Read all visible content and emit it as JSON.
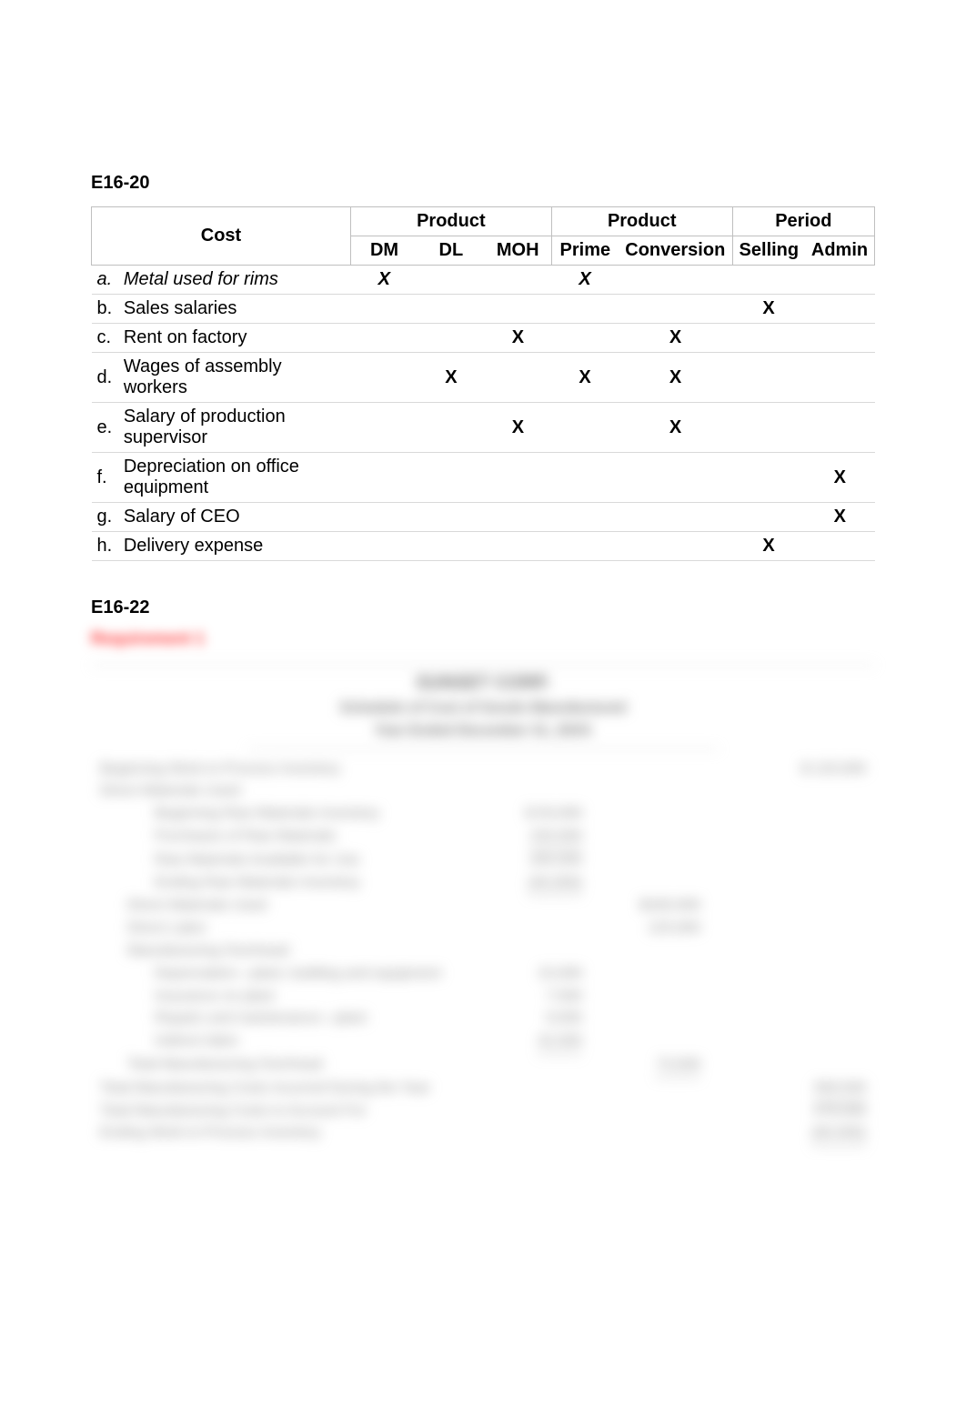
{
  "section1": {
    "title": "E16-20",
    "headers": {
      "cost": "Cost",
      "product1": "Product",
      "product2": "Product",
      "period": "Period",
      "dm": "DM",
      "dl": "DL",
      "moh": "MOH",
      "prime": "Prime",
      "conversion": "Conversion",
      "selling": "Selling",
      "admin": "Admin"
    },
    "rows": [
      {
        "letter": "a.",
        "label": "Metal used for rims",
        "italic": true,
        "dm": "X",
        "dl": "",
        "moh": "",
        "prime": "X",
        "conv": "",
        "selling": "",
        "admin": ""
      },
      {
        "letter": "b.",
        "label": "Sales salaries",
        "italic": false,
        "dm": "",
        "dl": "",
        "moh": "",
        "prime": "",
        "conv": "",
        "selling": "X",
        "admin": ""
      },
      {
        "letter": "c.",
        "label": "Rent on factory",
        "italic": false,
        "dm": "",
        "dl": "",
        "moh": "X",
        "prime": "",
        "conv": "X",
        "selling": "",
        "admin": ""
      },
      {
        "letter": "d.",
        "label": "Wages of assembly workers",
        "italic": false,
        "dm": "",
        "dl": "X",
        "moh": "",
        "prime": "X",
        "conv": "X",
        "selling": "",
        "admin": ""
      },
      {
        "letter": "e.",
        "label": "Salary of production supervisor",
        "italic": false,
        "dm": "",
        "dl": "",
        "moh": "X",
        "prime": "",
        "conv": "X",
        "selling": "",
        "admin": ""
      },
      {
        "letter": "f.",
        "label": "Depreciation on office equipment",
        "italic": false,
        "dm": "",
        "dl": "",
        "moh": "",
        "prime": "",
        "conv": "",
        "selling": "",
        "admin": "X"
      },
      {
        "letter": "g.",
        "label": "Salary of CEO",
        "italic": false,
        "dm": "",
        "dl": "",
        "moh": "",
        "prime": "",
        "conv": "",
        "selling": "",
        "admin": "X"
      },
      {
        "letter": "h.",
        "label": "Delivery expense",
        "italic": false,
        "dm": "",
        "dl": "",
        "moh": "",
        "prime": "",
        "conv": "",
        "selling": "X",
        "admin": ""
      }
    ]
  },
  "section2": {
    "title": "E16-22",
    "subtitle_blur": "Requirement 1",
    "header_lines": [
      "SUNSET CORP.",
      "Schedule of Cost of Goods Manufactured",
      "Year Ended December 31, 20XX"
    ],
    "lines": [
      {
        "label": "Beginning Work-in-Process Inventory",
        "indent": 0,
        "c4": "$ 120,000"
      },
      {
        "label": "Direct Materials Used:",
        "indent": 0
      },
      {
        "label": "Beginning Raw Materials Inventory",
        "indent": 2,
        "c2": "$  50,000"
      },
      {
        "label": "Purchases of Raw Materials",
        "indent": 2,
        "c2": "150,000",
        "u2": true
      },
      {
        "label": "Raw Materials Available for Use",
        "indent": 2,
        "c2": "200,000"
      },
      {
        "label": "Ending Raw Materials Inventory",
        "indent": 2,
        "c2": "(40,000)",
        "u2": true
      },
      {
        "label": "Direct Materials Used",
        "indent": 1,
        "c3": "$160,000"
      },
      {
        "label": "Direct Labor",
        "indent": 1,
        "c3": "125,000"
      },
      {
        "label": "Manufacturing Overhead:",
        "indent": 1
      },
      {
        "label": "Depreciation—plant, building and equipment",
        "indent": 2,
        "c2": "15,000"
      },
      {
        "label": "Insurance on plant",
        "indent": 2,
        "c2": "7,500"
      },
      {
        "label": "Repairs and maintenance—plant",
        "indent": 2,
        "c2": "9,000"
      },
      {
        "label": "Indirect labor",
        "indent": 2,
        "c2": "42,000",
        "u2": true
      },
      {
        "label": "Total Manufacturing Overhead",
        "indent": 1,
        "c3": "73,500",
        "u3": true
      },
      {
        "label": "Total Manufacturing Costs Incurred During the Year",
        "indent": 0,
        "c4": "358,500"
      },
      {
        "label": "Total Manufacturing Costs to Account For",
        "indent": 0,
        "c4": "478,500",
        "topline4": true
      },
      {
        "label": "Ending Work-in-Process Inventory",
        "indent": 0,
        "c4": "(60,000)",
        "u4": true
      }
    ]
  },
  "colors": {
    "border": "#bfbfbf",
    "row_border": "#d9d9d9",
    "text": "#000000",
    "blur_text": "#8a8a8a",
    "blur_red": "#ff3030",
    "background": "#ffffff"
  }
}
